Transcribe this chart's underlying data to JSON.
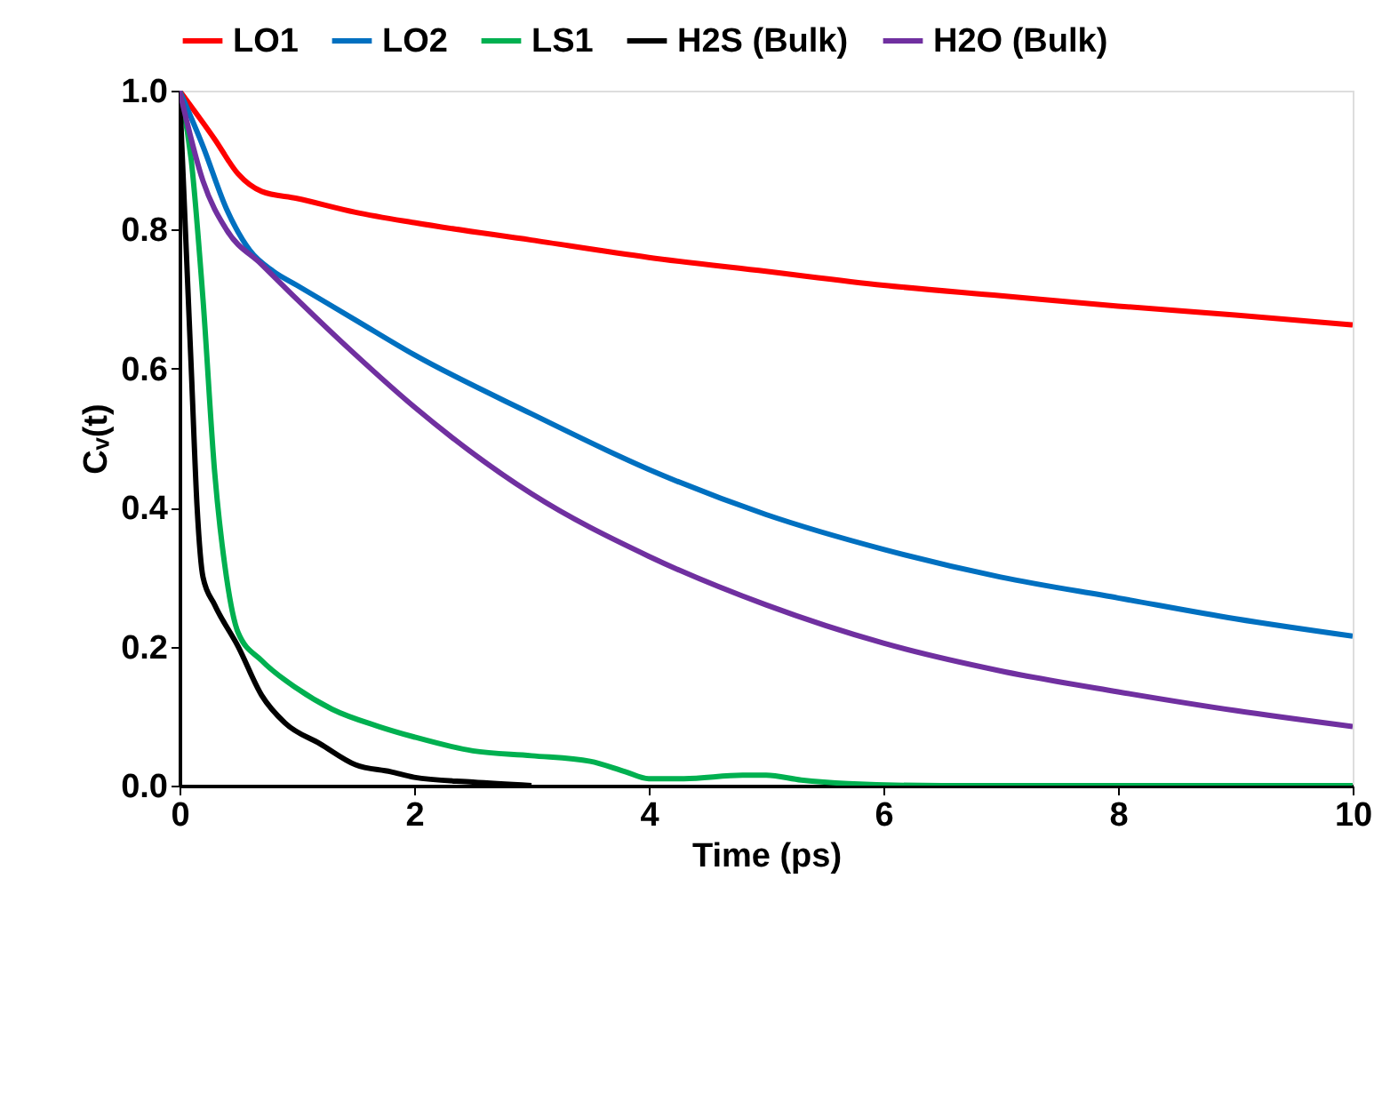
{
  "chart_data": {
    "type": "line",
    "xlabel": "Time (ps)",
    "ylabel": "Cᵥ(t)",
    "xlim": [
      0,
      10
    ],
    "ylim": [
      0,
      1
    ],
    "xticks": [
      0,
      2,
      4,
      6,
      8,
      10
    ],
    "yticks": [
      {
        "value": 0,
        "label": "0.0"
      },
      {
        "value": 0.2,
        "label": "0.2"
      },
      {
        "value": 0.4,
        "label": "0.4"
      },
      {
        "value": 0.6,
        "label": "0.6"
      },
      {
        "value": 0.8,
        "label": "0.8"
      },
      {
        "value": 1,
        "label": "1.0"
      }
    ],
    "grid": false,
    "legend": "top",
    "marker": "none",
    "line_style": "solid",
    "series": [
      {
        "name": "LO1",
        "color": "#ff0000",
        "x": [
          0,
          0.3,
          0.5,
          0.7,
          1,
          1.5,
          2,
          3,
          4,
          5,
          6,
          7,
          8,
          9,
          10
        ],
        "values": [
          1,
          0.93,
          0.88,
          0.855,
          0.845,
          0.825,
          0.81,
          0.785,
          0.76,
          0.74,
          0.72,
          0.705,
          0.69,
          0.677,
          0.663
        ]
      },
      {
        "name": "LO2",
        "color": "#0070c0",
        "x": [
          0,
          0.2,
          0.4,
          0.6,
          0.8,
          1,
          1.5,
          2,
          3,
          4,
          5,
          6,
          7,
          8,
          9,
          10
        ],
        "values": [
          1,
          0.92,
          0.83,
          0.77,
          0.74,
          0.72,
          0.67,
          0.62,
          0.535,
          0.455,
          0.39,
          0.34,
          0.3,
          0.27,
          0.24,
          0.215
        ]
      },
      {
        "name": "LS1",
        "color": "#00b050",
        "x": [
          0,
          0.1,
          0.2,
          0.3,
          0.4,
          0.5,
          0.7,
          1,
          1.3,
          1.7,
          2,
          2.5,
          3,
          3.5,
          3.8,
          4,
          4.3,
          4.8,
          5,
          5.3,
          5.7,
          6.5,
          10
        ],
        "values": [
          1,
          0.9,
          0.7,
          0.45,
          0.3,
          0.22,
          0.18,
          0.14,
          0.11,
          0.085,
          0.07,
          0.05,
          0.043,
          0.035,
          0.02,
          0.01,
          0.01,
          0.015,
          0.015,
          0.008,
          0.003,
          0,
          0
        ]
      },
      {
        "name": "H2S (Bulk)",
        "color": "#000000",
        "x": [
          0,
          0.05,
          0.1,
          0.15,
          0.2,
          0.3,
          0.5,
          0.7,
          0.9,
          1.2,
          1.5,
          1.8,
          2,
          2.5,
          3
        ],
        "values": [
          1,
          0.8,
          0.6,
          0.4,
          0.3,
          0.26,
          0.2,
          0.13,
          0.09,
          0.06,
          0.03,
          0.02,
          0.012,
          0.005,
          0
        ]
      },
      {
        "name": "H2O (Bulk)",
        "color": "#7030a0",
        "x": [
          0,
          0.2,
          0.4,
          0.7,
          1,
          1.5,
          2,
          3,
          4,
          5,
          6,
          7,
          8,
          9,
          10
        ],
        "values": [
          1,
          0.87,
          0.8,
          0.75,
          0.7,
          0.62,
          0.545,
          0.42,
          0.33,
          0.26,
          0.205,
          0.165,
          0.135,
          0.108,
          0.085
        ]
      }
    ]
  }
}
